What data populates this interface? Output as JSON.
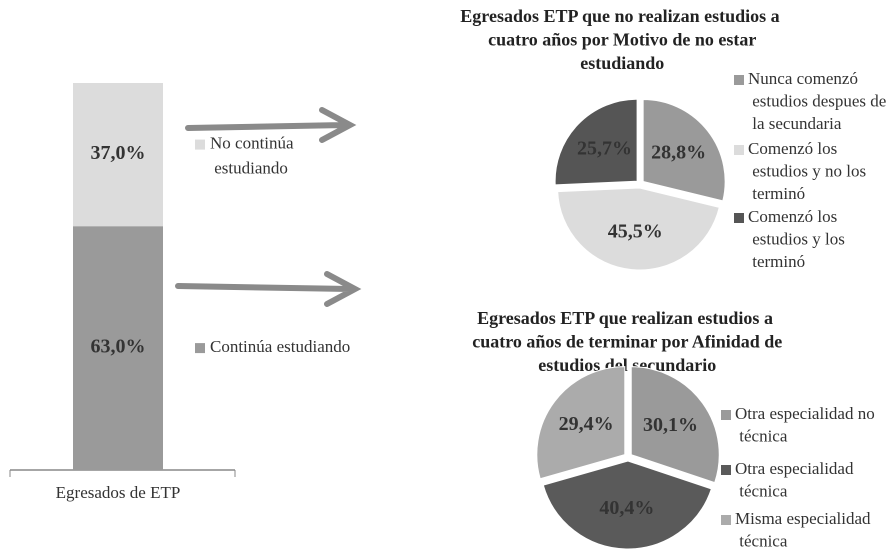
{
  "chart_data": [
    {
      "type": "stacked-bar",
      "categories": [
        "Egresados de ETP"
      ],
      "series": [
        {
          "name": "Continúa estudiando",
          "color": "#9a9a9a",
          "values": [
            63.0
          ],
          "value_labels": [
            "63,0%"
          ]
        },
        {
          "name": "No continúa estudiando",
          "color": "#dcdcdc",
          "values": [
            37.0
          ],
          "value_labels": [
            "37,0%"
          ]
        }
      ]
    },
    {
      "type": "pie",
      "title": "Egresados ETP que no realizan estudios a cuatro años por Motivo de no estar estudiando",
      "categories": [
        "Nunca comenzó estudios despues de la secundaria",
        "Comenzó los estudios y no los terminó",
        "Comenzó los estudios y los terminó"
      ],
      "values": [
        28.8,
        45.5,
        25.7
      ],
      "value_labels": [
        "28,8%",
        "45,5%",
        "25,7%"
      ],
      "colors": [
        "#9a9a9a",
        "#dcdcdc",
        "#555555"
      ]
    },
    {
      "type": "pie",
      "title": "Egresados ETP que realizan estudios  a cuatro años de terminar por Afinidad de estudios del secundario",
      "categories": [
        "Otra especialidad no técnica",
        "Otra especialidad técnica",
        "Misma especialidad técnica"
      ],
      "values": [
        30.1,
        40.4,
        29.4
      ],
      "value_labels": [
        "30,1%",
        "40,4%",
        "29,4%"
      ],
      "colors": [
        "#9a9a9a",
        "#5a5a5a",
        "#ababab"
      ]
    }
  ]
}
